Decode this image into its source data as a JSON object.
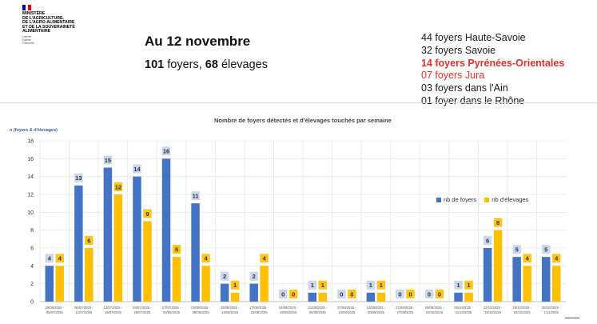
{
  "header": {
    "ministry": "MINISTÈRE\nDE L'AGRICULTURE,\nDE L'AGRO-ALIMENTAIRE\nET DE LA SOUVERAINETÉ\nALIMENTAIRE",
    "motto": "Liberté\nÉgalité\nFraternité",
    "date_title": "Au 12 novembre",
    "foyers_count": "101",
    "foyers_word": "foyers,",
    "elevages_count": "68",
    "elevages_word": "élevages"
  },
  "foyers_list": [
    {
      "text": "44 foyers Haute-Savoie",
      "color": "#1a1a1a",
      "bold": false
    },
    {
      "text": "32 foyers Savoie",
      "color": "#1a1a1a",
      "bold": false
    },
    {
      "text": "14 foyers Pyrénées-Orientales",
      "color": "#e0302b",
      "bold": true
    },
    {
      "text": "07 foyers Jura",
      "color": "#e0302b",
      "bold": false
    },
    {
      "text": "03 foyers dans l'Ain",
      "color": "#1a1a1a",
      "bold": false
    },
    {
      "text": "01 foyer dans le Rhône",
      "color": "#1a1a1a",
      "bold": false
    }
  ],
  "colors": {
    "foyers": "#4472c4",
    "elevages": "#ffc000",
    "label_foyers": "#c9d7ef",
    "label_elevages": "#ffc000",
    "grid": "#e6e6e6"
  },
  "chart_data": {
    "type": "bar",
    "title": "Nombre de foyers détectés et d'élevages touchés par semaine",
    "ylabel": "n (foyers & d'élevages)",
    "ylim": [
      0,
      18
    ],
    "yticks": [
      0,
      2,
      4,
      6,
      8,
      10,
      12,
      14,
      16,
      18
    ],
    "grid": true,
    "legend_position": "right",
    "categories": [
      "29/06/2025 - 05/07/2025",
      "06/07/2025 - 12/07/2025",
      "13/07/2025 - 19/07/2025",
      "20/07/2025 - 26/07/2025",
      "27/07/2025 - 02/08/2025",
      "03/08/2025 - 09/08/2025",
      "10/08/2025 - 16/08/2025",
      "17/08/2025 - 23/08/2025",
      "24/08/2025 - 30/08/2025",
      "31/08/2025 - 06/09/2025",
      "07/09/2025 - 13/09/2025",
      "14/09/2025 - 20/09/2025",
      "21/09/2025 - 27/09/2025",
      "28/09/2025 - 04/10/2025",
      "05/10/2025 - 11/10/2025",
      "12/10/2025 - 18/10/2025",
      "19/10/2025 - 25/10/2025",
      "26/10/2025 - 1/11/2025"
    ],
    "series": [
      {
        "name": "nb de foyers",
        "values": [
          4,
          13,
          15,
          14,
          16,
          11,
          2,
          2,
          0,
          1,
          0,
          1,
          0,
          0,
          1,
          6,
          5,
          5
        ]
      },
      {
        "name": "nb  d'élevages",
        "values": [
          4,
          6,
          12,
          9,
          5,
          4,
          1,
          4,
          0,
          1,
          0,
          1,
          0,
          0,
          1,
          8,
          4,
          4
        ]
      }
    ]
  }
}
